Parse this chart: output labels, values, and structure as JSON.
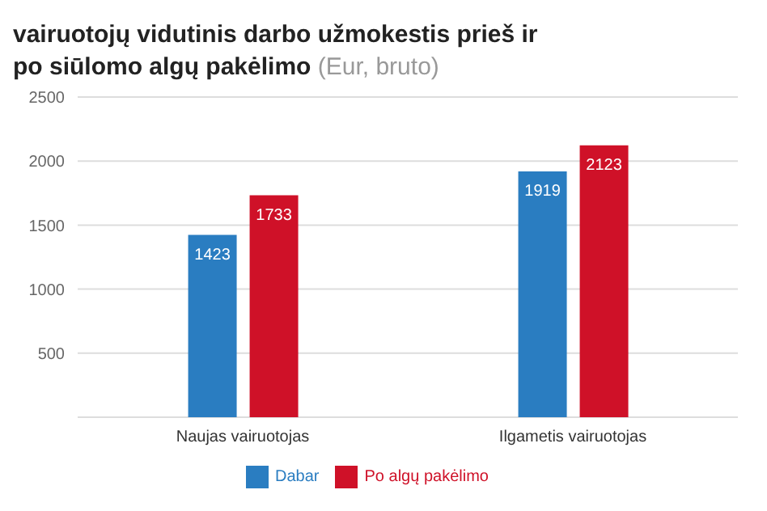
{
  "chart_data": {
    "type": "bar",
    "title": "vairuotojų vidutinis darbo užmokestis prieš ir po siūlomo algų pakėlimo",
    "subtitle": "(Eur, bruto)",
    "categories": [
      "Naujas vairuotojas",
      "Ilgametis vairuotojas"
    ],
    "series": [
      {
        "name": "Dabar",
        "color": "#2a7dc1",
        "values": [
          1423,
          1919
        ]
      },
      {
        "name": "Po algų pakėlimo",
        "color": "#cf1128",
        "values": [
          1733,
          2123
        ]
      }
    ],
    "ylim": [
      0,
      2500
    ],
    "yticks": [
      {
        "value": 0,
        "label": null
      },
      500,
      1000,
      1500,
      2000,
      2500
    ],
    "grid": "y",
    "legend": "bottom",
    "data_labels": true
  }
}
